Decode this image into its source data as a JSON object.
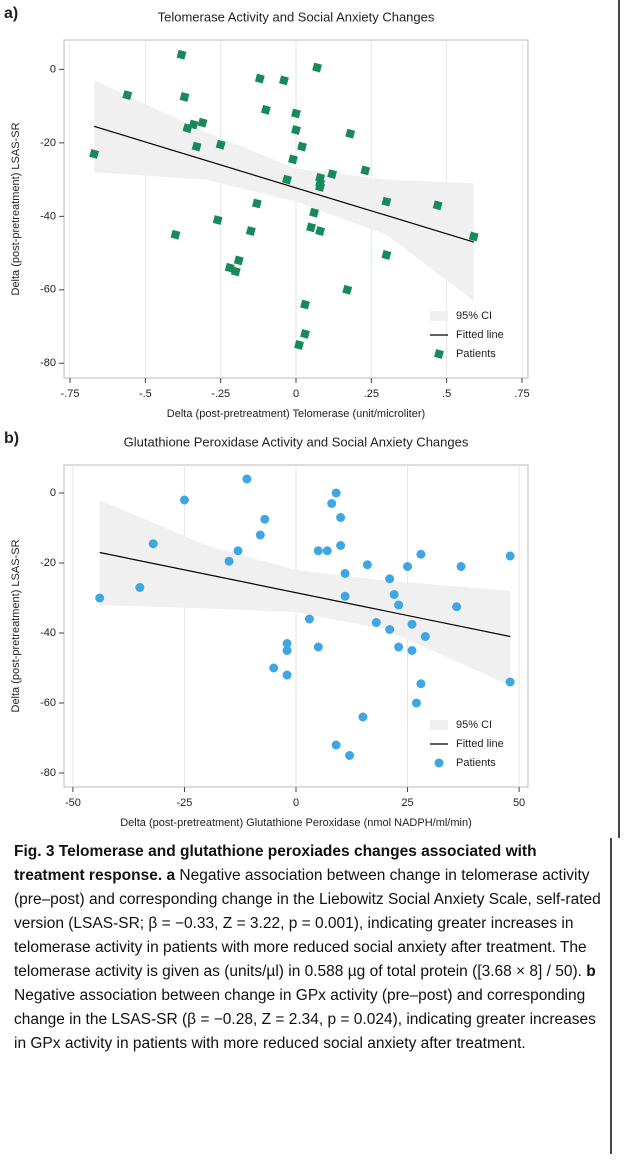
{
  "chart_data": [
    {
      "type": "scatter",
      "panel": "a)",
      "title": "Telomerase Activity and Social Anxiety Changes",
      "x_label": "Delta (post-pretreatment) Telomerase (unit/microliter)",
      "y_label": "Delta (post-pretreatment) LSAS-SR",
      "xlim": [
        -0.77,
        0.77
      ],
      "ylim": [
        -84,
        8
      ],
      "xticks": [
        {
          "value": -0.75,
          "label": "-.75"
        },
        {
          "value": -0.5,
          "label": "-.5"
        },
        {
          "value": -0.25,
          "label": "-.25"
        },
        0,
        {
          "value": 0.25,
          "label": ".25"
        },
        {
          "value": 0.5,
          "label": ".5"
        },
        {
          "value": 0.75,
          "label": ".75"
        }
      ],
      "yticks": [
        -80,
        -60,
        -40,
        -20,
        0
      ],
      "grid": true,
      "legend": "lower-right",
      "series": [
        {
          "name": "95% CI",
          "color": "#f0f0f0",
          "x": [
            -0.67,
            -0.3,
            0,
            0.3,
            0.59
          ],
          "upper": [
            -3,
            -17,
            -27,
            -30,
            -31
          ],
          "lower": [
            -28,
            -30,
            -36,
            -45,
            -63
          ]
        },
        {
          "name": "Fitted line",
          "color": "#000000",
          "x": [
            -0.67,
            0.59
          ],
          "values": [
            -15.5,
            -47
          ]
        },
        {
          "name": "Patients",
          "color": "#178a5c",
          "marker": "square",
          "x": [
            -0.67,
            -0.56,
            -0.4,
            -0.38,
            -0.37,
            -0.36,
            -0.34,
            -0.33,
            -0.31,
            -0.25,
            -0.26,
            -0.22,
            -0.2,
            -0.19,
            -0.15,
            -0.13,
            -0.12,
            -0.1,
            -0.04,
            -0.03,
            -0.01,
            0,
            0,
            0.01,
            0.02,
            0.03,
            0.03,
            0.05,
            0.06,
            0.07,
            0.08,
            0.08,
            0.08,
            0.08,
            0.12,
            0.17,
            0.18,
            0.23,
            0.3,
            0.3,
            0.47,
            0.59
          ],
          "values": [
            -23,
            -7,
            -45,
            4,
            -7.5,
            -16,
            -15,
            -21,
            -14.5,
            -20.5,
            -41,
            -54,
            -55,
            -52,
            -44,
            -36.5,
            -2.5,
            -11,
            -3,
            -30,
            -24.5,
            -12,
            -16.5,
            -75,
            -21,
            -72,
            -64,
            -43,
            -39,
            0.5,
            -31,
            -32,
            -29.5,
            -44,
            -28.5,
            -60,
            -17.5,
            -27.5,
            -36,
            -50.5,
            -37,
            -45.5
          ]
        }
      ]
    },
    {
      "type": "scatter",
      "panel": "b)",
      "title": "Glutathione Peroxidase Activity and Social Anxiety Changes",
      "x_label": "Delta (post-pretreatment) Glutathione Peroxidase (nmol NADPH/ml/min)",
      "y_label": "Delta (post-pretreatment) LSAS-SR",
      "xlim": [
        -52,
        52
      ],
      "ylim": [
        -84,
        8
      ],
      "xticks": [
        -50,
        -25,
        0,
        25,
        50
      ],
      "yticks": [
        -80,
        -60,
        -40,
        -20,
        0
      ],
      "grid": true,
      "legend": "lower-right",
      "series": [
        {
          "name": "95% CI",
          "color": "#f0f0f0",
          "x": [
            -44,
            -20,
            0,
            20,
            48
          ],
          "upper": [
            -2,
            -15,
            -22,
            -25,
            -28
          ],
          "lower": [
            -32,
            -33,
            -34,
            -39,
            -55
          ]
        },
        {
          "name": "Fitted line",
          "color": "#000000",
          "x": [
            -44,
            48
          ],
          "values": [
            -17,
            -41
          ]
        },
        {
          "name": "Patients",
          "color": "#3ea6e3",
          "marker": "circle",
          "x": [
            -44,
            -35,
            -32,
            -25,
            -15,
            -13,
            -11,
            -7,
            -8,
            -5,
            -2,
            -2,
            -2,
            3,
            5,
            5,
            7,
            8,
            9,
            9,
            10,
            10,
            11,
            11,
            12,
            15,
            16,
            18,
            21,
            21,
            22,
            23,
            23,
            25,
            26,
            26,
            27,
            28,
            28,
            29,
            36,
            37,
            48,
            48
          ],
          "values": [
            -30,
            -27,
            -14.5,
            -2,
            -19.5,
            -16.5,
            4,
            -7.5,
            -12,
            -50,
            -43,
            -45,
            -52,
            -36,
            -44,
            -16.5,
            -16.5,
            -3,
            -72,
            0,
            -7,
            -15,
            -23,
            -29.5,
            -75,
            -64,
            -20.5,
            -37,
            -39,
            -24.5,
            -29,
            -32,
            -44,
            -21,
            -45,
            -37.5,
            -60,
            -54.5,
            -17.5,
            -41,
            -32.5,
            -21,
            -18,
            -54
          ]
        }
      ]
    }
  ],
  "caption": {
    "label": "Fig. 3",
    "title": "Telomerase and glutathione peroxiades changes associated with treatment response.",
    "a_label": "a",
    "a_text": "Negative association between change in telomerase activity (pre–post) and corresponding change in the Liebowitz Social Anxiety Scale, self-rated version (LSAS-SR; β = −0.33, Z = 3.22, p = 0.001), indicating greater increases in telomerase activity in patients with more reduced social anxiety after treatment. The telomerase activity is given as (units/µl) in 0.588 µg of total protein ([3.68 × 8] / 50).",
    "b_label": "b",
    "b_text": "Negative association between change in GPx activity (pre–post) and corresponding change in the LSAS-SR (β = −0.28, Z = 2.34, p = 0.024), indicating greater increases in GPx activity in patients with more reduced social anxiety after treatment."
  }
}
